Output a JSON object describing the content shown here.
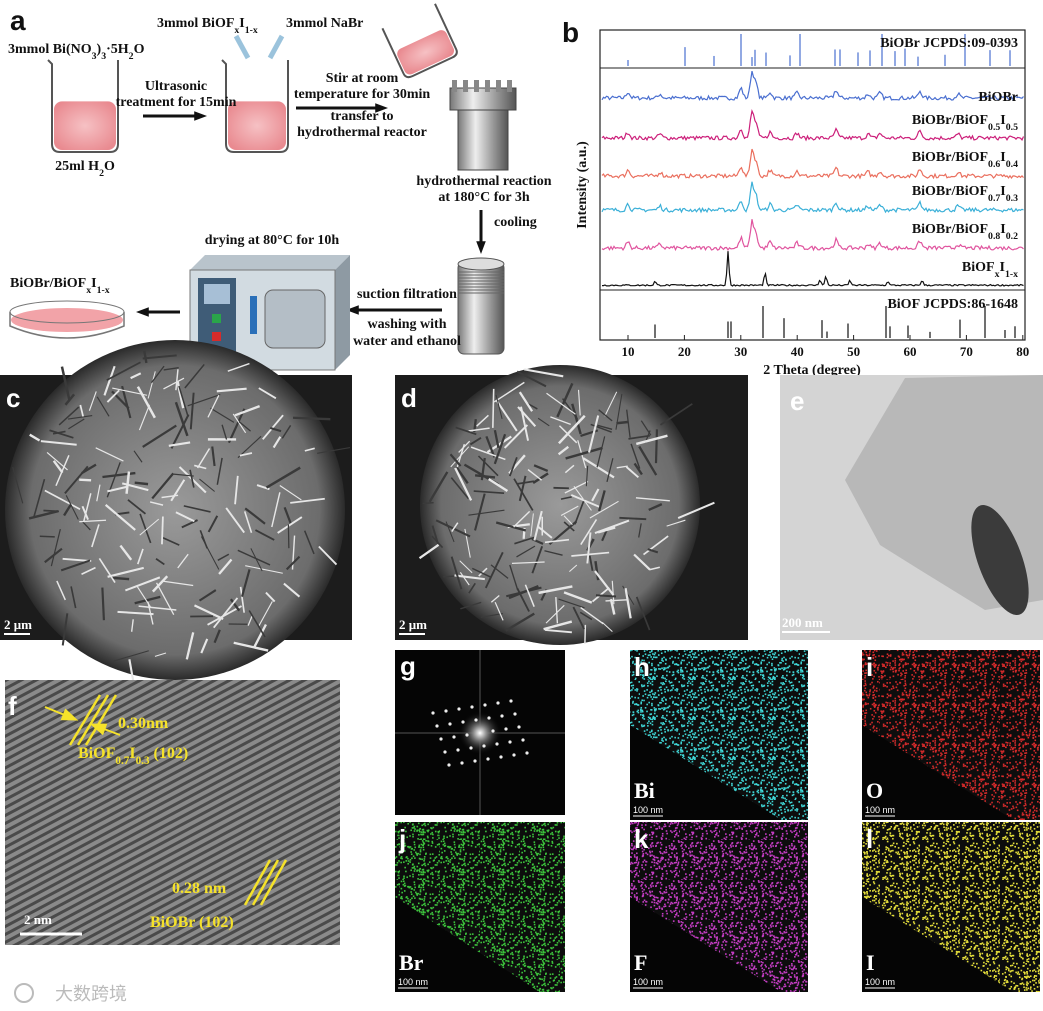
{
  "panel_a": {
    "label": "a",
    "reagent_1": [
      "3mmol Bi(NO",
      "3",
      ")",
      "3",
      "·5H",
      "2",
      "O"
    ],
    "reagent_2": [
      "3mmol BiOF",
      "x",
      "I",
      "1-x"
    ],
    "reagent_3": "3mmol NaBr",
    "solvent": [
      "25ml H",
      "2",
      "O"
    ],
    "step_1": [
      "Ultrasonic",
      "treatment for 15min"
    ],
    "step_2": [
      "Stir at room",
      "temperature for 30min",
      "transfer to",
      "hydrothermal reactor"
    ],
    "step_3": [
      "hydrothermal reaction",
      "at 180°C for 3h"
    ],
    "step_4": "cooling",
    "step_5": [
      "suction filtration",
      "washing with",
      "water and ethanol"
    ],
    "step_6": "drying at 80°C for 10h",
    "product": [
      "BiOBr/BiOF",
      "x",
      "I",
      "1-x"
    ]
  },
  "panel_b": {
    "label": "b",
    "y_axis_label": "Intensity (a.u.)",
    "x_axis_label": "2 Theta (degree)",
    "x_ticks": [
      10,
      20,
      30,
      40,
      50,
      60,
      70,
      80
    ],
    "traces": [
      {
        "name": "BiOBr JCPDS:09-0393"
      },
      {
        "name": "BiOBr"
      },
      {
        "name": [
          "BiOBr/BiOF",
          "0.5",
          "I",
          "0.5"
        ]
      },
      {
        "name": [
          "BiOBr/BiOF",
          "0.6",
          "I",
          "0.4"
        ]
      },
      {
        "name": [
          "BiOBr/BiOF",
          "0.7",
          "I",
          "0.3"
        ]
      },
      {
        "name": [
          "BiOBr/BiOF",
          "0.8",
          "I",
          "0.2"
        ]
      },
      {
        "name": [
          "BiOF",
          "x",
          "I",
          "1-x"
        ]
      },
      {
        "name": "BiOF JCPDS:86-1648"
      }
    ]
  },
  "panel_c": {
    "label": "c",
    "scale_bar": "2 μm"
  },
  "panel_d": {
    "label": "d",
    "scale_bar": "2 μm"
  },
  "panel_e": {
    "label": "e",
    "scale_bar": "200 nm"
  },
  "panel_f": {
    "label": "f",
    "spacing_1": "0.30nm",
    "plane_1": [
      "BiOF",
      "0.7",
      "I",
      "0.3",
      " (102)"
    ],
    "spacing_2": "0.28 nm",
    "plane_2": "BiOBr (102)",
    "scale_bar": "2 nm"
  },
  "panel_g": {
    "label": "g"
  },
  "panel_h": {
    "label": "h",
    "element": "Bi",
    "scale_bar": "100 nm"
  },
  "panel_i": {
    "label": "i",
    "element": "O",
    "scale_bar": "100 nm"
  },
  "panel_j": {
    "label": "j",
    "element": "Br",
    "scale_bar": "100 nm"
  },
  "panel_k": {
    "label": "k",
    "element": "F",
    "scale_bar": "100 nm"
  },
  "panel_l": {
    "label": "l",
    "element": "I",
    "scale_bar": "100 nm"
  },
  "watermark": "大数跨境"
}
